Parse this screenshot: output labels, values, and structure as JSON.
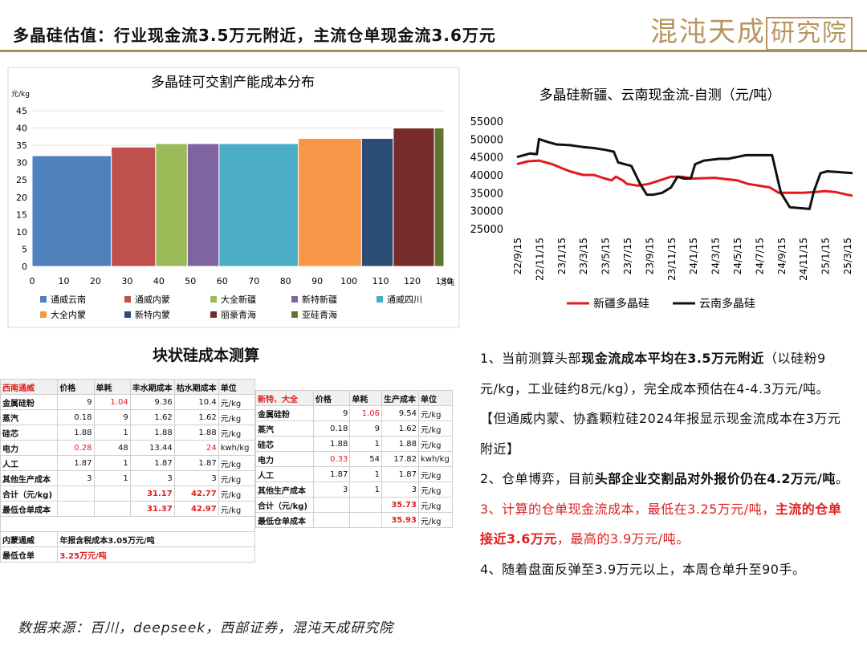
{
  "header": {
    "title": "多晶硅估值：行业现金流3.5万元附近，主流仓单现金流3.6万元",
    "logo_text": "混沌天成",
    "logo_boxed": "研究院"
  },
  "chart_data": [
    {
      "type": "bar",
      "title": "多晶硅可交割产能成本分布",
      "ylabel": "元/kg",
      "xunit": "万吨",
      "ylim": [
        0,
        45
      ],
      "yticks": [
        0,
        5,
        10,
        15,
        20,
        25,
        30,
        35,
        40,
        45
      ],
      "xlim": [
        0,
        130
      ],
      "xticks": [
        0,
        10,
        20,
        30,
        40,
        50,
        60,
        70,
        80,
        90,
        100,
        110,
        120,
        130
      ],
      "series": [
        {
          "name": "通威云南",
          "x0": 0,
          "x1": 25,
          "value": 32,
          "color": "#4f81bd"
        },
        {
          "name": "通威内蒙",
          "x0": 25,
          "x1": 39,
          "value": 34.5,
          "color": "#c0504d"
        },
        {
          "name": "大全新疆",
          "x0": 39,
          "x1": 49,
          "value": 35.5,
          "color": "#9bbb59"
        },
        {
          "name": "新特新疆",
          "x0": 49,
          "x1": 59,
          "value": 35.5,
          "color": "#8064a2"
        },
        {
          "name": "通威四川",
          "x0": 59,
          "x1": 84,
          "value": 35.5,
          "color": "#4bacc6"
        },
        {
          "name": "大全内蒙",
          "x0": 84,
          "x1": 104,
          "value": 37,
          "color": "#f79646"
        },
        {
          "name": "新特内蒙",
          "x0": 104,
          "x1": 114,
          "value": 37,
          "color": "#2c4d75"
        },
        {
          "name": "丽豪青海",
          "x0": 114,
          "x1": 127,
          "value": 40,
          "color": "#772c2a"
        },
        {
          "name": "亚硅青海",
          "x0": 127,
          "x1": 136,
          "value": 40,
          "color": "#5f7530"
        }
      ]
    },
    {
      "type": "line",
      "title": "多晶硅新疆、云南现金流-自测（元/吨）",
      "ylim": [
        25000,
        55000
      ],
      "yticks": [
        25000,
        30000,
        35000,
        40000,
        45000,
        50000,
        55000
      ],
      "xticks": [
        "22/9/15",
        "22/11/15",
        "23/1/15",
        "23/3/15",
        "23/5/15",
        "23/7/15",
        "23/9/15",
        "23/11/15",
        "24/1/15",
        "24/3/15",
        "24/5/15",
        "24/7/15",
        "24/9/15",
        "24/11/15",
        "25/1/15",
        "25/3/15"
      ],
      "series": [
        {
          "name": "新疆多晶硅",
          "color": "#e31a1c",
          "points": [
            [
              0,
              43000
            ],
            [
              0.5,
              43800
            ],
            [
              1,
              44000
            ],
            [
              1.6,
              43000
            ],
            [
              2,
              42000
            ],
            [
              2.4,
              41000
            ],
            [
              3,
              40000
            ],
            [
              3.5,
              40000
            ],
            [
              4,
              39000
            ],
            [
              4.3,
              38500
            ],
            [
              4.5,
              39500
            ],
            [
              4.8,
              38500
            ],
            [
              5,
              37500
            ],
            [
              5.5,
              37000
            ],
            [
              6,
              37500
            ],
            [
              6.5,
              38500
            ],
            [
              7,
              39500
            ],
            [
              7.5,
              39500
            ],
            [
              8,
              39000
            ],
            [
              9,
              39200
            ],
            [
              10,
              38500
            ],
            [
              10.5,
              37500
            ],
            [
              11,
              37000
            ],
            [
              11.5,
              36500
            ],
            [
              11.9,
              35000
            ],
            [
              12.5,
              35000
            ],
            [
              13,
              35000
            ],
            [
              13.5,
              35200
            ],
            [
              14,
              35500
            ],
            [
              14.5,
              35200
            ],
            [
              15,
              34500
            ],
            [
              15.5,
              34000
            ],
            [
              16,
              33600
            ]
          ]
        },
        {
          "name": "云南多晶硅",
          "color": "#111111",
          "points": [
            [
              0,
              45000
            ],
            [
              0.3,
              45500
            ],
            [
              0.6,
              46000
            ],
            [
              0.9,
              45800
            ],
            [
              1,
              50000
            ],
            [
              1.4,
              49200
            ],
            [
              1.8,
              48500
            ],
            [
              2.4,
              48300
            ],
            [
              3,
              47800
            ],
            [
              3.5,
              47500
            ],
            [
              4,
              47000
            ],
            [
              4.4,
              46500
            ],
            [
              4.6,
              43500
            ],
            [
              5.2,
              42500
            ],
            [
              5.6,
              37500
            ],
            [
              5.9,
              34500
            ],
            [
              6.2,
              34500
            ],
            [
              6.6,
              35000
            ],
            [
              7,
              36500
            ],
            [
              7.3,
              39500
            ],
            [
              7.6,
              39000
            ],
            [
              7.9,
              39000
            ],
            [
              8.1,
              43000
            ],
            [
              8.5,
              44000
            ],
            [
              9.2,
              44500
            ],
            [
              9.6,
              44500
            ],
            [
              10,
              45000
            ],
            [
              10.4,
              45500
            ],
            [
              11,
              45500
            ],
            [
              11.6,
              45500
            ],
            [
              11.9,
              37500
            ],
            [
              12,
              35000
            ],
            [
              12.4,
              31000
            ],
            [
              13.3,
              30500
            ],
            [
              13.5,
              35500
            ],
            [
              13.8,
              40500
            ],
            [
              14.1,
              41000
            ],
            [
              14.6,
              40800
            ],
            [
              15,
              40600
            ],
            [
              15.5,
              40400
            ],
            [
              16,
              40400
            ]
          ]
        }
      ]
    }
  ],
  "table_title": "块状硅成本测算",
  "table_left": {
    "headers": [
      "西南通威",
      "价格",
      "单耗",
      "丰水期成本",
      "枯水期成本",
      "单位"
    ],
    "rows": [
      {
        "name": "金属硅粉",
        "price": "9",
        "use": "1.04",
        "wet": "9.36",
        "dry": "10.4",
        "unit": "元/kg"
      },
      {
        "name": "蒸汽",
        "price": "0.18",
        "use": "9",
        "wet": "1.62",
        "dry": "1.62",
        "unit": "元/kg"
      },
      {
        "name": "硅芯",
        "price": "1.88",
        "use": "1",
        "wet": "1.88",
        "dry": "1.88",
        "unit": "元/kg"
      },
      {
        "name": "电力",
        "price": "0.28",
        "use": "48",
        "wet": "13.44",
        "dry": "24",
        "unit": "kwh/kg"
      },
      {
        "name": "人工",
        "price": "1.87",
        "use": "1",
        "wet": "1.87",
        "dry": "1.87",
        "unit": "元/kg"
      },
      {
        "name": "其他生产成本",
        "price": "3",
        "use": "1",
        "wet": "3",
        "dry": "3",
        "unit": "元/kg"
      }
    ],
    "total": {
      "name": "合计（元/kg)",
      "wet": "31.17",
      "dry": "42.77",
      "unit": "元/kg"
    },
    "min": {
      "name": "最低仓单成本",
      "wet": "31.37",
      "dry": "42.97",
      "unit": "元/kg"
    },
    "note1_label": "内蒙通威",
    "note1_text": "年报含税成本3.05万元/吨",
    "note2_label": "最低仓单",
    "note2_text": "3.25万元/吨"
  },
  "table_right": {
    "headers": [
      "新特、大全",
      "价格",
      "单耗",
      "生产成本",
      "单位"
    ],
    "rows": [
      {
        "name": "金属硅粉",
        "price": "9",
        "use": "1.06",
        "cost": "9.54",
        "unit": "元/kg"
      },
      {
        "name": "蒸汽",
        "price": "0.18",
        "use": "9",
        "cost": "1.62",
        "unit": "元/kg"
      },
      {
        "name": "硅芯",
        "price": "1.88",
        "use": "1",
        "cost": "1.88",
        "unit": "元/kg"
      },
      {
        "name": "电力",
        "price": "0.33",
        "use": "54",
        "cost": "17.82",
        "unit": "kwh/kg"
      },
      {
        "name": "人工",
        "price": "1.87",
        "use": "1",
        "cost": "1.87",
        "unit": "元/kg"
      },
      {
        "name": "其他生产成本",
        "price": "3",
        "use": "1",
        "cost": "3",
        "unit": "元/kg"
      }
    ],
    "total": {
      "name": "合计（元/kg)",
      "cost": "35.73",
      "unit": "元/kg"
    },
    "min": {
      "name": "最低仓单成本",
      "cost": "35.93",
      "unit": "元/kg"
    }
  },
  "bullets": {
    "p1_a": "1、当前测算头部",
    "p1_b": "现金流成本平均在3.5万元附近",
    "p1_c": "（以硅粉9元/kg，工业硅约8元/kg），完全成本预估在4-4.3万元/吨。【但通威内蒙、协鑫颗粒硅2024年报显示现金流成本在3万元附近】",
    "p2_a": "2、仓单博弈，目前",
    "p2_b": "头部企业交割品对外报价仍在4.2万元/吨",
    "p2_c": "。",
    "p3_a": "3、计算的仓单现金流成本，最低在3.25万元/吨，",
    "p3_b": "主流的仓单接近3.6万元",
    "p3_c": "，最高的3.9万元/吨。",
    "p4": "4、随着盘面反弹至3.9万元以上，本周仓单升至90手。"
  },
  "source": "数据来源：百川，deepseek，西部证券，混沌天成研究院"
}
